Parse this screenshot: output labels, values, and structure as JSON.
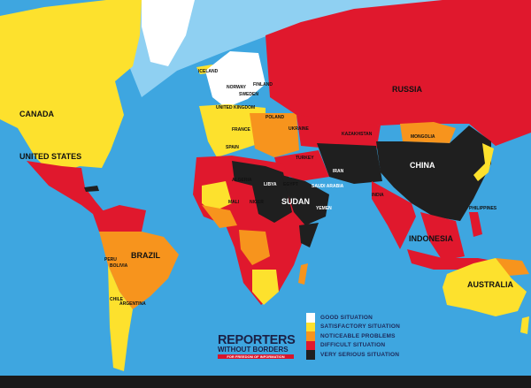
{
  "colors": {
    "ocean": "#3ea6e0",
    "polar_sea": "#8fd0f2",
    "good": "#ffffff",
    "satisfactory": "#fde12d",
    "noticeable": "#f7941d",
    "difficult": "#e0182d",
    "very_serious": "#1f1f1f"
  },
  "legend": [
    {
      "label": "GOOD SITUATION",
      "color": "#ffffff"
    },
    {
      "label": "SATISFACTORY SITUATION",
      "color": "#fde12d"
    },
    {
      "label": "NOTICEABLE PROBLEMS",
      "color": "#f7941d"
    },
    {
      "label": "DIFFICULT SITUATION",
      "color": "#e0182d"
    },
    {
      "label": "VERY SERIOUS SITUATION",
      "color": "#1f1f1f"
    }
  ],
  "logo": {
    "line1": "REPORTERS",
    "line2": "WITHOUT BORDERS",
    "tagline": "FOR FREEDOM OF INFORMATION"
  },
  "labels": {
    "canada": "CANADA",
    "united_states": "UNITED STATES",
    "brazil": "BRAZIL",
    "peru": "PERU",
    "bolivia": "BOLIVIA",
    "chile": "CHILE",
    "argentina": "ARGENTINA",
    "iceland": "ICELAND",
    "russia": "RUSSIA",
    "kazakhstan": "KAZAKHSTAN",
    "mongolia": "MONGOLIA",
    "china": "CHINA",
    "iran": "IRAN",
    "india": "INDIA",
    "libya": "LIBYA",
    "algeria": "ALGERIA",
    "egypt": "EGYPT",
    "sudan": "SUDAN",
    "saudi_arabia": "SAUDI ARABIA",
    "yemen": "YEMEN",
    "mali": "MALI",
    "niger": "NIGER",
    "indonesia": "INDONESIA",
    "australia": "AUSTRALIA",
    "philippines": "PHILIPPINES",
    "france": "FRANCE",
    "spain": "SPAIN",
    "poland": "POLAND",
    "ukraine": "UKRAINE",
    "turkey": "TURKEY",
    "finland": "FINLAND",
    "norway": "NORWAY",
    "sweden": "SWEDEN",
    "united_kingdom": "UNITED KINGDOM"
  }
}
